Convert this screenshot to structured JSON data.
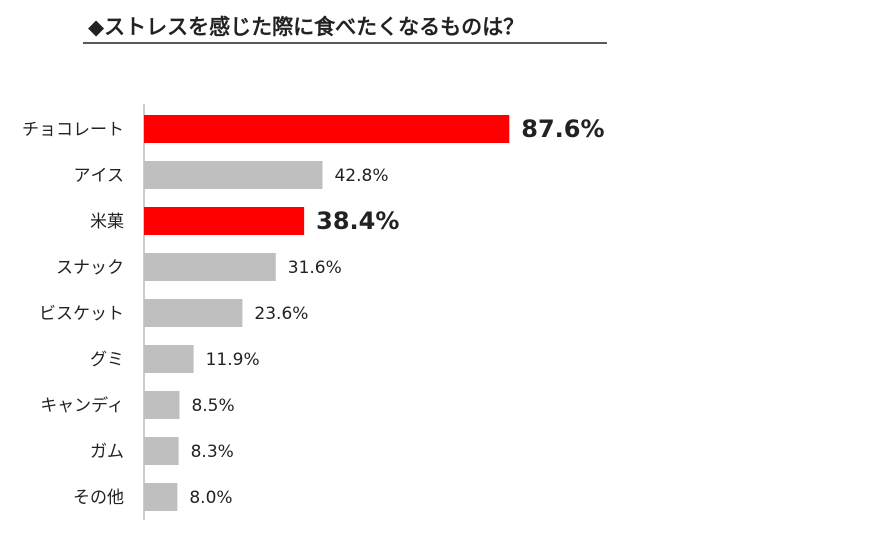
{
  "chart_data": {
    "type": "barh",
    "title": "◆ストレスを感じた際に食べたくなるものは？",
    "categories": [
      "チョコレート",
      "アイス",
      "米菓",
      "スナック",
      "ビスケット",
      "グミ",
      "キャンディ",
      "ガム",
      "その他"
    ],
    "values": [
      87.6,
      42.8,
      38.4,
      31.6,
      23.6,
      11.9,
      8.5,
      8.3,
      8.0
    ],
    "value_labels": [
      "87.6%",
      "42.8%",
      "38.4%",
      "31.6%",
      "23.6%",
      "11.9%",
      "8.5%",
      "8.3%",
      "8.0%"
    ],
    "colors": [
      "#ff0000",
      "#bfbfbf",
      "#ff0000",
      "#bfbfbf",
      "#bfbfbf",
      "#bfbfbf",
      "#bfbfbf",
      "#bfbfbf",
      "#bfbfbf"
    ],
    "value_label_colors": [
      "#e60000",
      "#222222",
      "#e60000",
      "#222222",
      "#222222",
      "#222222",
      "#222222",
      "#222222",
      "#222222"
    ],
    "xlim": [
      0,
      100
    ]
  }
}
